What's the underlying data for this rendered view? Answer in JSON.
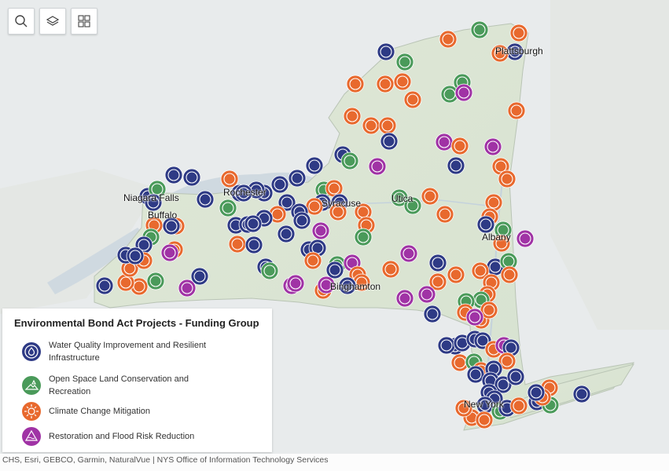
{
  "toolbar": {
    "search_icon": "search-icon",
    "layers_icon": "layers-icon",
    "basemap_icon": "basemap-gallery-icon"
  },
  "cities": [
    {
      "name": "Plattsburgh"
    },
    {
      "name": "Niagara Falls"
    },
    {
      "name": "Rochester"
    },
    {
      "name": "Syracuse"
    },
    {
      "name": "Utica"
    },
    {
      "name": "Buffalo"
    },
    {
      "name": "Albany"
    },
    {
      "name": "Binghamton"
    },
    {
      "name": "New York"
    }
  ],
  "legend": {
    "title": "Environmental Bond Act Projects - Funding Group",
    "items": [
      {
        "label": "Water Quality Improvement and Resilient Infrastructure",
        "color": "#2e3a85"
      },
      {
        "label": "Open Space Land Conservation and Recreation",
        "color": "#4a9a5a"
      },
      {
        "label": "Climate Change Mitigation",
        "color": "#e8692e"
      },
      {
        "label": "Restoration and Flood Risk Reduction",
        "color": "#a033a5"
      }
    ]
  },
  "attribution": "CHS, Esri, GEBCO, Garmin, NaturalVue | NYS Office of Information Technology Services"
}
